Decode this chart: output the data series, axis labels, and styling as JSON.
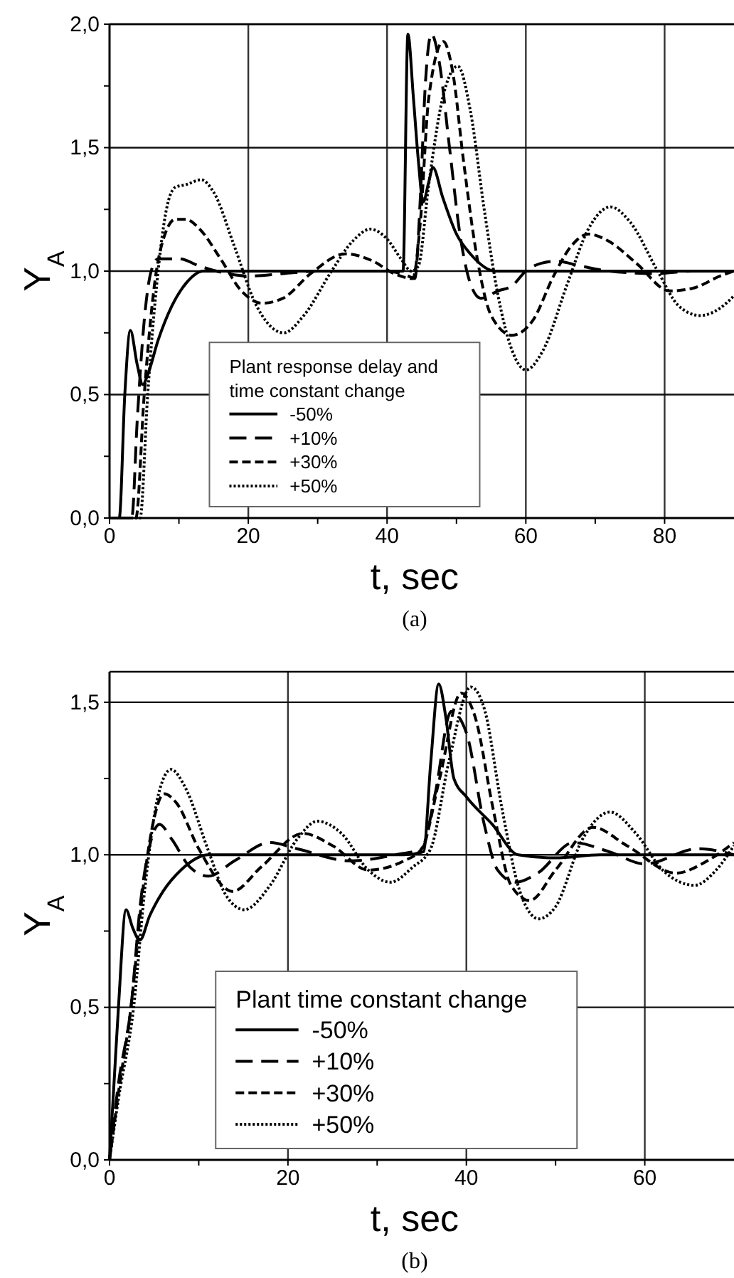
{
  "chart_data": [
    {
      "type": "line",
      "xlabel": "t, sec",
      "ylabel": "Y$_{A}$",
      "annotations": [
        "(a)"
      ],
      "legend": "bottom left",
      "legend_title": "Plant response delay and time constant change",
      "grid": true,
      "marker": "none",
      "xlim": [
        0,
        90
      ],
      "xticks": [
        0,
        {
          "value": 10,
          "label": null
        },
        20,
        {
          "value": 30,
          "label": null
        },
        40,
        {
          "value": 50,
          "label": null
        },
        60,
        {
          "value": 70,
          "label": null
        },
        80
      ],
      "ylim": [
        0,
        2
      ],
      "yticks": [
        {
          "value": 0,
          "label": "0,0"
        },
        {
          "value": 0.25,
          "label": null
        },
        {
          "value": 0.5,
          "label": "0,5"
        },
        {
          "value": 0.75,
          "label": null
        },
        {
          "value": 1,
          "label": "1,0"
        },
        {
          "value": 1.25,
          "label": null
        },
        {
          "value": 1.5,
          "label": "1,5"
        },
        {
          "value": 1.75,
          "label": null
        },
        {
          "value": 2,
          "label": "2,0"
        }
      ],
      "series": [
        {
          "name": "-50%",
          "color": "#000000",
          "line_style": "solid",
          "x": [
            0,
            1.4,
            2.2,
            3,
            4,
            4.8,
            5.5,
            7,
            9,
            11,
            13.5,
            20,
            30,
            40,
            42.3,
            43,
            43.8,
            44.5,
            45.2,
            46,
            46.6,
            48,
            50,
            52,
            55.6,
            60,
            70,
            80,
            90
          ],
          "values": [
            0,
            0,
            0.5,
            0.76,
            0.62,
            0.54,
            0.58,
            0.72,
            0.86,
            0.95,
            1.0,
            1.0,
            1.0,
            1.0,
            1.0,
            1.96,
            1.7,
            1.45,
            1.28,
            1.36,
            1.42,
            1.3,
            1.15,
            1.07,
            1.0,
            1.0,
            1.0,
            1.0,
            1.0
          ]
        },
        {
          "name": "+10%",
          "color": "#000000",
          "line_style": "dashed",
          "x": [
            0,
            3.2,
            4,
            5,
            6,
            7,
            10,
            13,
            17,
            20,
            25,
            30,
            40,
            43,
            44,
            44.8,
            45.5,
            46.4,
            47.5,
            49,
            50.5,
            52,
            53.5,
            56,
            58,
            60,
            62,
            64.4,
            68,
            72,
            78.6,
            84,
            90
          ],
          "values": [
            0,
            0,
            0.4,
            0.8,
            1.0,
            1.05,
            1.05,
            1.02,
            0.99,
            0.98,
            0.99,
            1.0,
            1.0,
            0.98,
            0.97,
            1.3,
            1.75,
            1.96,
            1.85,
            1.5,
            1.15,
            0.95,
            0.89,
            0.92,
            0.94,
            1.0,
            1.03,
            1.04,
            1.02,
            1.0,
            0.99,
            1.0,
            1.0
          ]
        },
        {
          "name": "+30%",
          "color": "#000000",
          "line_style": "dashed",
          "x": [
            0,
            3.8,
            5,
            6.5,
            8,
            9.5,
            11,
            13,
            16,
            19,
            22,
            25,
            29,
            34,
            38,
            41,
            43.7,
            44.8,
            46,
            48.1,
            49.5,
            51,
            53,
            55,
            58,
            61,
            64,
            66.5,
            69,
            72,
            76,
            80.7,
            84,
            88,
            90
          ],
          "values": [
            0,
            0,
            0.5,
            0.95,
            1.15,
            1.21,
            1.21,
            1.17,
            1.05,
            0.92,
            0.87,
            0.89,
            0.99,
            1.07,
            1.04,
            0.99,
            0.97,
            1.2,
            1.7,
            1.93,
            1.8,
            1.45,
            1.05,
            0.82,
            0.74,
            0.8,
            0.98,
            1.1,
            1.15,
            1.12,
            1.03,
            0.92,
            0.93,
            0.98,
            1.0
          ]
        },
        {
          "name": "+50%",
          "color": "#000000",
          "line_style": "dotted",
          "x": [
            0,
            4.4,
            5.5,
            7,
            8.2,
            9.5,
            11,
            13.2,
            15,
            18,
            21,
            25.1,
            28,
            32,
            35,
            37.6,
            40,
            42,
            43.5,
            44.5,
            46,
            48,
            50.2,
            52,
            54,
            56,
            58,
            60,
            62.5,
            66,
            69,
            72.2,
            75,
            79,
            82,
            85.1,
            88,
            90
          ],
          "values": [
            0,
            0,
            0.5,
            1.0,
            1.25,
            1.34,
            1.35,
            1.37,
            1.32,
            1.1,
            0.87,
            0.75,
            0.82,
            1.0,
            1.12,
            1.17,
            1.13,
            1.05,
            1.0,
            1.02,
            1.35,
            1.7,
            1.83,
            1.65,
            1.25,
            0.9,
            0.68,
            0.6,
            0.68,
            0.95,
            1.17,
            1.26,
            1.2,
            1.0,
            0.86,
            0.82,
            0.85,
            0.9
          ]
        }
      ]
    },
    {
      "type": "line",
      "xlabel": "t, sec",
      "ylabel": "Y$_{A}$",
      "annotations": [
        "(b)"
      ],
      "legend": "bottom left",
      "legend_title": "Plant time constant change",
      "grid": true,
      "marker": "none",
      "xlim": [
        0,
        70
      ],
      "xticks": [
        0,
        {
          "value": 10,
          "label": null
        },
        20,
        {
          "value": 30,
          "label": null
        },
        40,
        {
          "value": 50,
          "label": null
        },
        60
      ],
      "ylim": [
        0,
        1.6
      ],
      "yticks": [
        {
          "value": 0,
          "label": "0,0"
        },
        {
          "value": 0.25,
          "label": null
        },
        {
          "value": 0.5,
          "label": "0,5"
        },
        {
          "value": 0.75,
          "label": null
        },
        {
          "value": 1,
          "label": "1,0"
        },
        {
          "value": 1.25,
          "label": null
        },
        {
          "value": 1.5,
          "label": "1,5"
        }
      ],
      "series": [
        {
          "name": "-50%",
          "color": "#000000",
          "line_style": "solid",
          "x": [
            0,
            0.5,
            1,
            1.85,
            2.6,
            3.4,
            4.5,
            6,
            8,
            11.1,
            15,
            25,
            33,
            35.2,
            36,
            36.9,
            37.7,
            38.6,
            40,
            42.9,
            45.8,
            50,
            55,
            60,
            70
          ],
          "values": [
            0,
            0.25,
            0.5,
            0.82,
            0.76,
            0.72,
            0.8,
            0.88,
            0.95,
            1.0,
            1.0,
            1.0,
            1.0,
            1.01,
            1.3,
            1.56,
            1.45,
            1.25,
            1.19,
            1.1,
            1.0,
            0.99,
            1.0,
            1.0,
            1.0
          ]
        },
        {
          "name": "+10%",
          "color": "#000000",
          "line_style": "dashed",
          "x": [
            0,
            1,
            2.4,
            3.5,
            4.5,
            5.6,
            7,
            9,
            11.1,
            14,
            18,
            21,
            27,
            32,
            35,
            36.5,
            38.3,
            40,
            42,
            43.5,
            45.5,
            48,
            52,
            56,
            60,
            66,
            70
          ],
          "values": [
            0,
            0.25,
            0.5,
            0.85,
            1.03,
            1.1,
            1.05,
            0.96,
            0.93,
            0.98,
            1.04,
            1.02,
            0.98,
            1.0,
            1.02,
            1.2,
            1.47,
            1.4,
            1.1,
            0.95,
            0.91,
            0.94,
            1.04,
            1.01,
            0.97,
            1.02,
            1.0
          ]
        },
        {
          "name": "+30%",
          "color": "#000000",
          "line_style": "dashed",
          "x": [
            0,
            1,
            2.4,
            3.8,
            5,
            6.1,
            7.5,
            10,
            13.8,
            17,
            21.7,
            25,
            29,
            33,
            35,
            37,
            39.4,
            41,
            43,
            45,
            47.1,
            50,
            54.2,
            58,
            63.5,
            67,
            70
          ],
          "values": [
            0,
            0.22,
            0.5,
            0.9,
            1.12,
            1.2,
            1.17,
            1.02,
            0.88,
            0.96,
            1.07,
            1.03,
            0.95,
            0.98,
            1.02,
            1.25,
            1.53,
            1.45,
            1.15,
            0.9,
            0.85,
            0.95,
            1.09,
            1.03,
            0.94,
            0.98,
            1.04
          ]
        },
        {
          "name": "+50%",
          "color": "#000000",
          "line_style": "dotted",
          "x": [
            0,
            1,
            2.7,
            4,
            5.5,
            6.9,
            8.5,
            11,
            13,
            15.1,
            18,
            21,
            23.3,
            26,
            29,
            31.5,
            34,
            36,
            38,
            40.5,
            42,
            44,
            46,
            48.1,
            50,
            53,
            56.1,
            59,
            62,
            65.6,
            68,
            70
          ],
          "values": [
            0,
            0.2,
            0.5,
            0.9,
            1.2,
            1.28,
            1.22,
            1.02,
            0.87,
            0.82,
            0.9,
            1.05,
            1.11,
            1.07,
            0.95,
            0.91,
            0.96,
            1.02,
            1.3,
            1.55,
            1.48,
            1.15,
            0.88,
            0.79,
            0.83,
            1.05,
            1.14,
            1.07,
            0.95,
            0.9,
            0.95,
            1.03
          ]
        }
      ]
    }
  ]
}
